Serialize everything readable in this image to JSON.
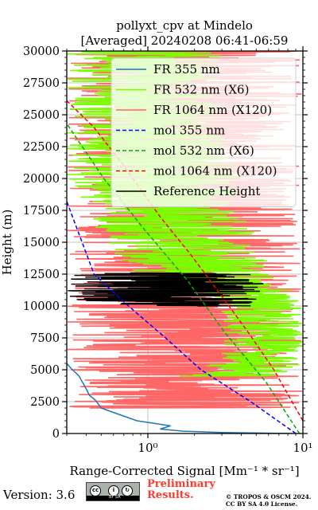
{
  "chart_data": {
    "type": "line",
    "title": "pollyxt_cpv at Mindelo",
    "subtitle": "[Averaged] 20240208 06:41-06:59",
    "xlabel": "Range-Corrected Signal [Mm⁻¹ * sr⁻¹]",
    "ylabel": "Height (m)",
    "xscale": "log",
    "xlim": [
      0.3,
      10
    ],
    "ylim": [
      0,
      30000
    ],
    "x_ticks": [
      {
        "value": 1,
        "label": "10⁰"
      },
      {
        "value": 10,
        "label": "10¹"
      }
    ],
    "y_ticks": [
      0,
      2500,
      5000,
      7500,
      10000,
      12500,
      15000,
      17500,
      20000,
      22500,
      25000,
      27500,
      30000
    ],
    "y_tick_labels": [
      "0",
      "2500",
      "5000",
      "7500",
      "10000",
      "12500",
      "15000",
      "17500",
      "20000",
      "22500",
      "25000",
      "27500",
      "30000"
    ],
    "grid": true,
    "legend_position": "top-right",
    "series": [
      {
        "name": "FR 355 nm",
        "color": "#1f77b4",
        "style": "solid",
        "x": [
          8.5,
          3,
          1.7,
          1.2,
          1.4,
          0.85,
          0.65,
          0.5,
          0.46,
          0.42,
          0.4,
          0.38,
          0.36,
          0.34,
          0.32,
          0.3
        ],
        "y": [
          0,
          80,
          180,
          350,
          600,
          1000,
          1500,
          2000,
          2600,
          3000,
          3500,
          4000,
          4500,
          4800,
          5100,
          5500
        ]
      },
      {
        "name": "FR 532 nm (X6)",
        "color": "#7cfc00",
        "style": "solid",
        "x_min": [
          1.5,
          3,
          3,
          3,
          3,
          0.8,
          0.5,
          0.3,
          0.3,
          0.3
        ],
        "x_max": [
          10,
          10,
          10,
          10,
          10,
          7,
          5,
          4,
          3,
          3
        ],
        "y": [
          4500,
          6000,
          7500,
          9000,
          10500,
          12000,
          15000,
          20000,
          25000,
          30000
        ]
      },
      {
        "name": "FR 1064 nm (X120)",
        "color": "#ff6666",
        "style": "solid",
        "x_min": [
          0.3,
          0.3,
          0.3,
          0.3,
          0.3,
          0.3,
          0.3
        ],
        "x_max": [
          10,
          10,
          10,
          10,
          10,
          10,
          10
        ],
        "y": [
          2000,
          6000,
          10000,
          15000,
          20000,
          25000,
          30000
        ]
      },
      {
        "name": "mol 355 nm",
        "color": "#0000ff",
        "style": "dashed",
        "x": [
          9,
          4.6,
          2.2,
          1.3,
          0.75,
          0.45,
          0.3
        ],
        "y": [
          0,
          2500,
          5000,
          7500,
          10000,
          12500,
          18200
        ]
      },
      {
        "name": "mol 532 nm (X6)",
        "color": "#00aa00",
        "style": "dashed",
        "x": [
          9.5,
          5.8,
          3.1,
          1.8,
          0.95,
          0.52,
          0.3
        ],
        "y": [
          0,
          4000,
          8000,
          12000,
          16000,
          20000,
          24300
        ]
      },
      {
        "name": "mol 1064 nm (X120)",
        "color": "#ff0000",
        "style": "dashed",
        "x": [
          10,
          6.5,
          4.4,
          2.9,
          1.9,
          1.2,
          0.7,
          0.45,
          0.3
        ],
        "y": [
          1000,
          5000,
          8000,
          11000,
          14000,
          17000,
          21000,
          24000,
          26100
        ]
      },
      {
        "name": "Reference Height",
        "color": "#000000",
        "style": "solid",
        "x_min": [
          0.3,
          0.3,
          0.3,
          0.3,
          0.3
        ],
        "x_max": [
          4.8,
          5.5,
          6,
          5.5,
          4.8
        ],
        "y": [
          10000,
          10800,
          11600,
          12200,
          12600
        ]
      }
    ]
  },
  "footer": {
    "version": "Version: 3.6",
    "cc_label": "BY SA",
    "preliminary_line1": "Preliminary",
    "preliminary_line2": "Results.",
    "copyright_line1": "© TROPOS & OSCM 2024.",
    "copyright_line2": "CC BY SA 4.0 License."
  }
}
